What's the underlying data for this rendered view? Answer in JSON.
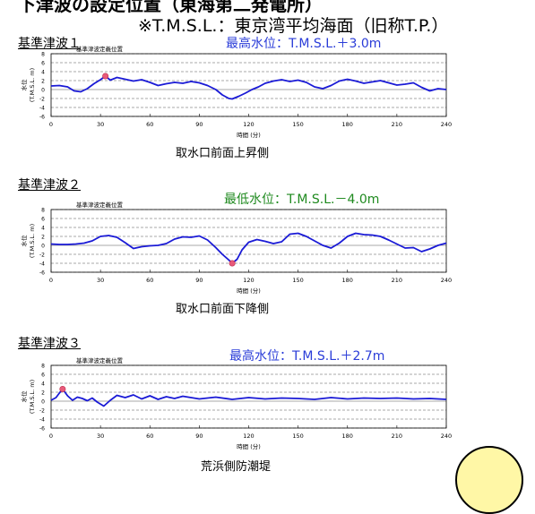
{
  "header": {
    "title": "下津波の設定位置（東海第二発電所）",
    "note": "※T.M.S.L.：東京湾平均海面（旧称T.P.）"
  },
  "colors": {
    "line": "#1a1ad6",
    "peak_marker": "#e85a7a",
    "max_annotation": "#2a3cd8",
    "min_annotation": "#1f8a1f",
    "grid": "#555555"
  },
  "chart_data": [
    {
      "type": "line",
      "heading": "基準津波１",
      "subtitle": "基準津波定義位置",
      "annotation": "最高水位：T.M.S.L.＋3.0m",
      "annotation_kind": "max",
      "caption": "取水口前面上昇側",
      "xlabel": "時間 (分)",
      "ylabel": [
        "水位",
        "(T.M.S.L. m)"
      ],
      "xlim": [
        0,
        240
      ],
      "ylim": [
        -6,
        8
      ],
      "xticks": [
        "0",
        "30",
        "60",
        "90",
        "120",
        "150",
        "180",
        "210",
        "240"
      ],
      "yticks": [
        "8",
        "6",
        "4",
        "2",
        "0",
        "-2",
        "-4",
        "-6"
      ],
      "grid": true,
      "marker": {
        "x": 33,
        "y": 3.0
      },
      "x": [
        0,
        5,
        10,
        14,
        18,
        22,
        26,
        30,
        33,
        36,
        40,
        45,
        50,
        55,
        60,
        65,
        70,
        75,
        80,
        85,
        90,
        95,
        100,
        104,
        108,
        110,
        114,
        118,
        122,
        126,
        130,
        135,
        140,
        145,
        150,
        155,
        160,
        165,
        170,
        175,
        180,
        185,
        190,
        195,
        200,
        205,
        210,
        215,
        220,
        225,
        230,
        235,
        240
      ],
      "y": [
        0.8,
        0.9,
        0.6,
        -0.3,
        -0.5,
        0.2,
        1.3,
        2.2,
        3.0,
        2.1,
        2.7,
        2.3,
        1.9,
        2.2,
        1.6,
        0.9,
        1.3,
        1.6,
        1.4,
        1.8,
        1.5,
        0.9,
        0.0,
        -1.2,
        -2.0,
        -2.1,
        -1.5,
        -0.8,
        0.0,
        0.6,
        1.4,
        1.9,
        2.2,
        1.8,
        2.1,
        1.6,
        0.6,
        0.2,
        0.9,
        1.9,
        2.3,
        1.9,
        1.4,
        1.7,
        2.0,
        1.5,
        1.0,
        1.2,
        1.5,
        0.5,
        -0.3,
        0.2,
        0.0
      ]
    },
    {
      "type": "line",
      "heading": "基準津波２",
      "subtitle": "基準津波定義位置",
      "annotation": "最低水位：T.M.S.L.－4.0m",
      "annotation_kind": "min",
      "caption": "取水口前面下降側",
      "xlabel": "時間 (分)",
      "ylabel": [
        "水位",
        "(T.M.S.L. m)"
      ],
      "xlim": [
        0,
        240
      ],
      "ylim": [
        -6,
        8
      ],
      "xticks": [
        "0",
        "30",
        "60",
        "90",
        "120",
        "150",
        "180",
        "210",
        "240"
      ],
      "yticks": [
        "8",
        "6",
        "4",
        "2",
        "0",
        "-2",
        "-4",
        "-6"
      ],
      "grid": true,
      "marker": {
        "x": 110,
        "y": -4.0
      },
      "x": [
        0,
        5,
        10,
        15,
        20,
        25,
        30,
        35,
        40,
        45,
        50,
        55,
        60,
        65,
        70,
        75,
        80,
        85,
        90,
        95,
        100,
        104,
        108,
        110,
        113,
        116,
        120,
        125,
        130,
        135,
        140,
        145,
        150,
        155,
        160,
        165,
        170,
        175,
        180,
        185,
        190,
        195,
        200,
        205,
        210,
        215,
        220,
        225,
        230,
        235,
        240
      ],
      "y": [
        0.3,
        0.2,
        0.2,
        0.3,
        0.5,
        1.0,
        2.0,
        2.2,
        1.8,
        0.6,
        -0.7,
        -0.3,
        -0.1,
        0.0,
        0.4,
        1.4,
        1.9,
        1.8,
        2.1,
        1.2,
        -0.5,
        -2.0,
        -3.3,
        -4.0,
        -3.1,
        -1.0,
        0.7,
        1.3,
        0.9,
        0.4,
        0.8,
        2.5,
        2.7,
        2.0,
        1.0,
        0.0,
        -0.6,
        0.5,
        2.0,
        2.7,
        2.4,
        2.3,
        2.0,
        1.2,
        0.3,
        -0.6,
        -0.5,
        -1.4,
        -0.8,
        0.0,
        0.5
      ]
    },
    {
      "type": "line",
      "heading": "基準津波３",
      "subtitle": "基準津波定義位置",
      "annotation": "最高水位：T.M.S.L.＋2.7m",
      "annotation_kind": "max",
      "caption": "荒浜側防潮堤",
      "xlabel": "時間 (分)",
      "ylabel": [
        "水位",
        "(T.M.S.L. m)"
      ],
      "xlim": [
        0,
        240
      ],
      "ylim": [
        -6,
        8
      ],
      "xticks": [
        "0",
        "30",
        "60",
        "90",
        "120",
        "150",
        "180",
        "210",
        "240"
      ],
      "yticks": [
        "8",
        "6",
        "4",
        "2",
        "0",
        "-2",
        "-4",
        "-6"
      ],
      "grid": true,
      "marker": {
        "x": 7,
        "y": 2.7
      },
      "x": [
        0,
        3,
        5,
        7,
        10,
        13,
        16,
        19,
        22,
        25,
        28,
        32,
        36,
        40,
        45,
        50,
        55,
        60,
        65,
        70,
        75,
        80,
        90,
        100,
        110,
        120,
        130,
        140,
        150,
        160,
        170,
        180,
        190,
        200,
        210,
        220,
        230,
        240
      ],
      "y": [
        0.2,
        0.8,
        1.8,
        2.7,
        1.2,
        0.2,
        0.9,
        0.6,
        0.1,
        0.7,
        -0.2,
        -1.1,
        0.2,
        1.3,
        0.8,
        1.4,
        0.5,
        1.2,
        0.4,
        1.0,
        0.6,
        1.1,
        0.5,
        0.9,
        0.4,
        0.8,
        0.5,
        0.7,
        0.6,
        0.4,
        0.8,
        0.5,
        0.7,
        0.6,
        0.7,
        0.5,
        0.6,
        0.4
      ]
    }
  ]
}
